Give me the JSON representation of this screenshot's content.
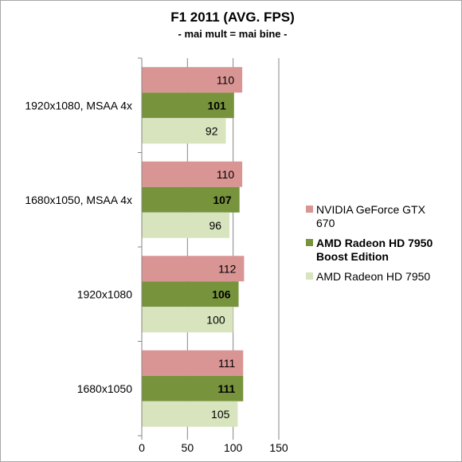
{
  "chart_data": {
    "type": "bar",
    "orientation": "horizontal",
    "title": "F1 2011 (AVG. FPS)",
    "subtitle": "- mai mult = mai bine -",
    "categories": [
      "1920x1080, MSAA 4x",
      "1680x1050, MSAA 4x",
      "1920x1080",
      "1680x1050"
    ],
    "series": [
      {
        "name": "NVIDIA GeForce GTX 670",
        "values": [
          110,
          110,
          112,
          111
        ],
        "color": "#d99594",
        "label_bold": false
      },
      {
        "name": "AMD Radeon HD 7950 Boost Edition",
        "values": [
          101,
          107,
          106,
          111
        ],
        "color": "#77933c",
        "label_bold": true
      },
      {
        "name": "AMD Radeon HD 7950",
        "values": [
          92,
          96,
          100,
          105
        ],
        "color": "#d7e4bd",
        "label_bold": false
      }
    ],
    "xlim": [
      0,
      150
    ],
    "xticks": [
      0,
      50,
      100,
      150
    ],
    "grid": true,
    "legend_position": "right"
  }
}
